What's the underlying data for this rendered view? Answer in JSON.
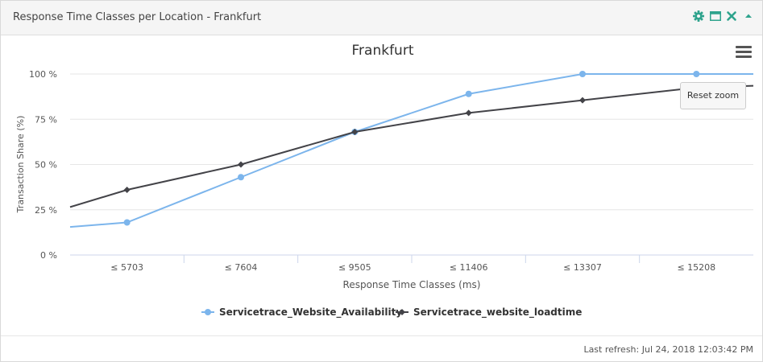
{
  "widget": {
    "title": "Response Time Classes per Location - Frankfurt",
    "icons": [
      "gear-icon",
      "maximize-icon",
      "close-icon",
      "collapse-icon"
    ],
    "accent_color": "#2fa38d"
  },
  "chart_data": {
    "type": "line",
    "title": "Frankfurt",
    "xlabel": "Response Time Classes (ms)",
    "ylabel": "Transaction Share (%)",
    "categories": [
      "≤ 5703",
      "≤ 7604",
      "≤ 9505",
      "≤ 11406",
      "≤ 13307",
      "≤ 15208"
    ],
    "y_ticks": [
      "0 %",
      "25 %",
      "50 %",
      "75 %",
      "100 %"
    ],
    "ylim": [
      0,
      100
    ],
    "grid": true,
    "legend_position": "bottom",
    "series": [
      {
        "name": "Servicetrace_Website_Availability",
        "color": "#7cb5ec",
        "marker": "circle",
        "values": [
          18,
          43,
          68,
          89,
          100,
          100
        ],
        "left_edge_value": 15.5,
        "right_edge_value": 100
      },
      {
        "name": "Servicetrace_website_loadtime",
        "color": "#434348",
        "marker": "diamond",
        "values": [
          36,
          50,
          68,
          78.5,
          85.5,
          92.5
        ],
        "left_edge_value": 26.5,
        "right_edge_value": 93.5
      }
    ]
  },
  "controls": {
    "reset_zoom": "Reset zoom",
    "menu_icon": "hamburger-menu-icon"
  },
  "footer": {
    "last_refresh": "Last refresh: Jul 24, 2018 12:03:42 PM"
  }
}
